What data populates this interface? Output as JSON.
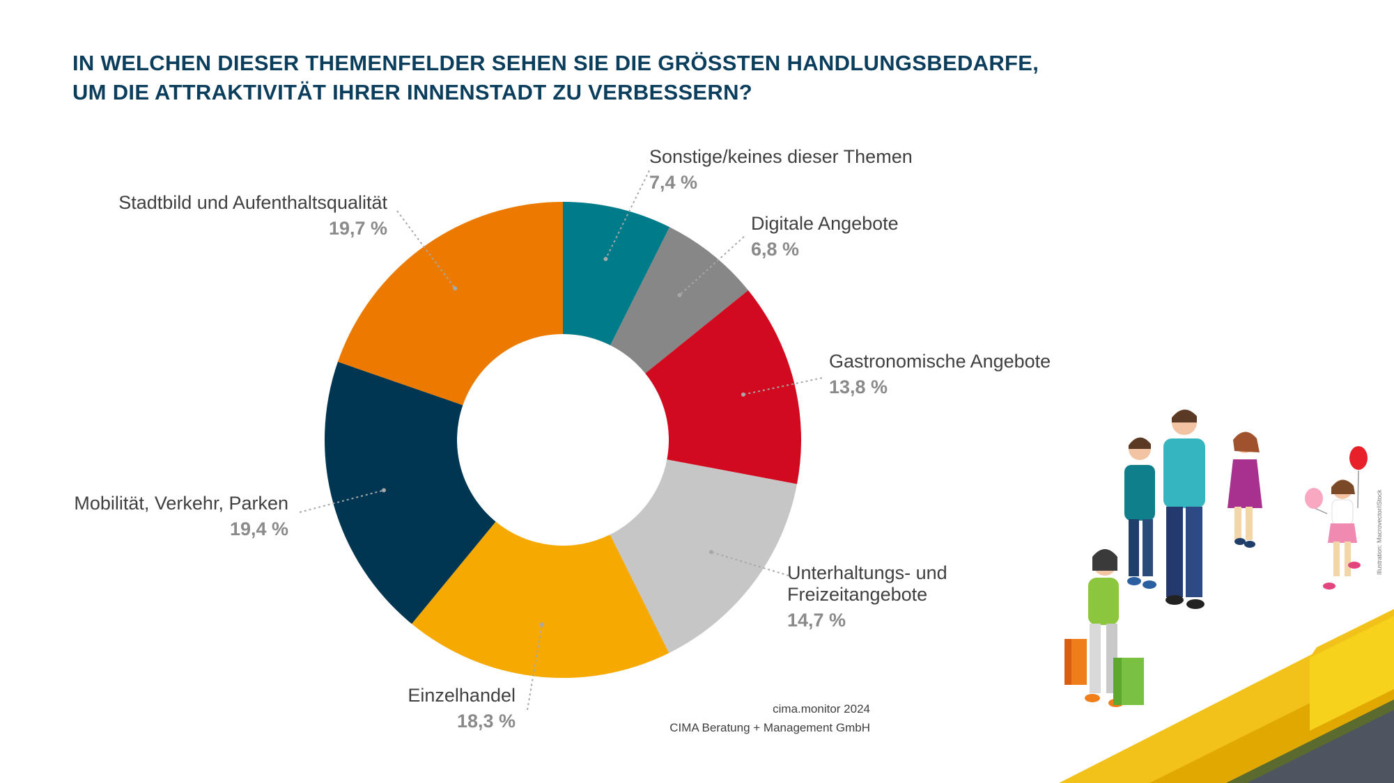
{
  "title": {
    "line1": "IN WELCHEN DIESER THEMENFELDER SEHEN SIE DIE GRÖSSTEN HANDLUNGSBEDARFE,",
    "line2": "UM DIE ATTRAKTIVITÄT IHRER INNENSTADT ZU VERBESSERN?"
  },
  "chart_data": {
    "type": "pie",
    "donut": true,
    "unit": "%",
    "slices": [
      {
        "label": "Sonstige/keines dieser Themen",
        "value": 7.4,
        "value_label": "7,4 %",
        "color": "#007b8a"
      },
      {
        "label": "Digitale Angebote",
        "value": 6.8,
        "value_label": "6,8 %",
        "color": "#878787"
      },
      {
        "label": "Gastronomische Angebote",
        "value": 13.8,
        "value_label": "13,8 %",
        "color": "#d10a1f"
      },
      {
        "label": "Unterhaltungs- und Freizeitangebote",
        "label_lines": [
          "Unterhaltungs- und",
          "Freizeitangebote"
        ],
        "value": 14.7,
        "value_label": "14,7 %",
        "color": "#c6c6c6"
      },
      {
        "label": "Einzelhandel",
        "value": 18.3,
        "value_label": "18,3 %",
        "color": "#f6a900"
      },
      {
        "label": "Mobilität, Verkehr, Parken",
        "value": 19.4,
        "value_label": "19,4 %",
        "color": "#003651"
      },
      {
        "label": "Stadtbild und Aufenthaltsqualität",
        "value": 19.7,
        "value_label": "19,7 %",
        "color": "#ec7a00"
      }
    ]
  },
  "source": {
    "line1": "cima.monitor 2024",
    "line2": "CIMA Beratung + Management GmbH"
  },
  "credit": "Illustration: Macrovector/iStock"
}
